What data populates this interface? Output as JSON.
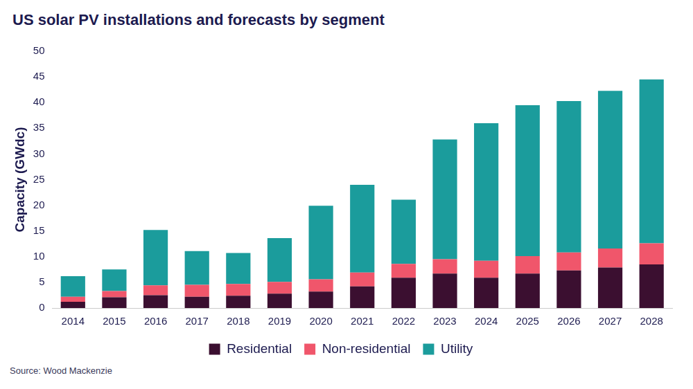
{
  "chart_data": {
    "type": "bar",
    "title": "US solar PV installations and forecasts by segment",
    "y_label": "Capacity (GWdc)",
    "source": "Source: Wood Mackenzie",
    "categories": [
      "2014",
      "2015",
      "2016",
      "2017",
      "2018",
      "2019",
      "2020",
      "2021",
      "2022",
      "2023",
      "2024",
      "2025",
      "2026",
      "2027",
      "2028"
    ],
    "series": [
      {
        "name": "Residential",
        "color": "#3b0f30",
        "values": [
          1.2,
          2.1,
          2.5,
          2.2,
          2.4,
          2.8,
          3.2,
          4.2,
          5.9,
          6.7,
          5.9,
          6.7,
          7.3,
          7.9,
          8.5
        ]
      },
      {
        "name": "Non-residential",
        "color": "#f0566b",
        "values": [
          1.0,
          1.2,
          1.9,
          2.3,
          2.3,
          2.3,
          2.4,
          2.7,
          2.7,
          2.8,
          3.3,
          3.4,
          3.5,
          3.7,
          4.1
        ]
      },
      {
        "name": "Utility",
        "color": "#1b9c9c",
        "values": [
          4.0,
          4.2,
          10.8,
          6.6,
          6.0,
          8.5,
          14.3,
          17.1,
          12.5,
          23.3,
          26.8,
          29.4,
          29.5,
          30.7,
          31.9
        ]
      }
    ],
    "stacked": true,
    "ylim": [
      0,
      50
    ],
    "yticks": [
      0,
      5,
      10,
      15,
      20,
      25,
      30,
      35,
      40,
      45,
      50
    ],
    "grid": false,
    "legend": "bottom"
  }
}
